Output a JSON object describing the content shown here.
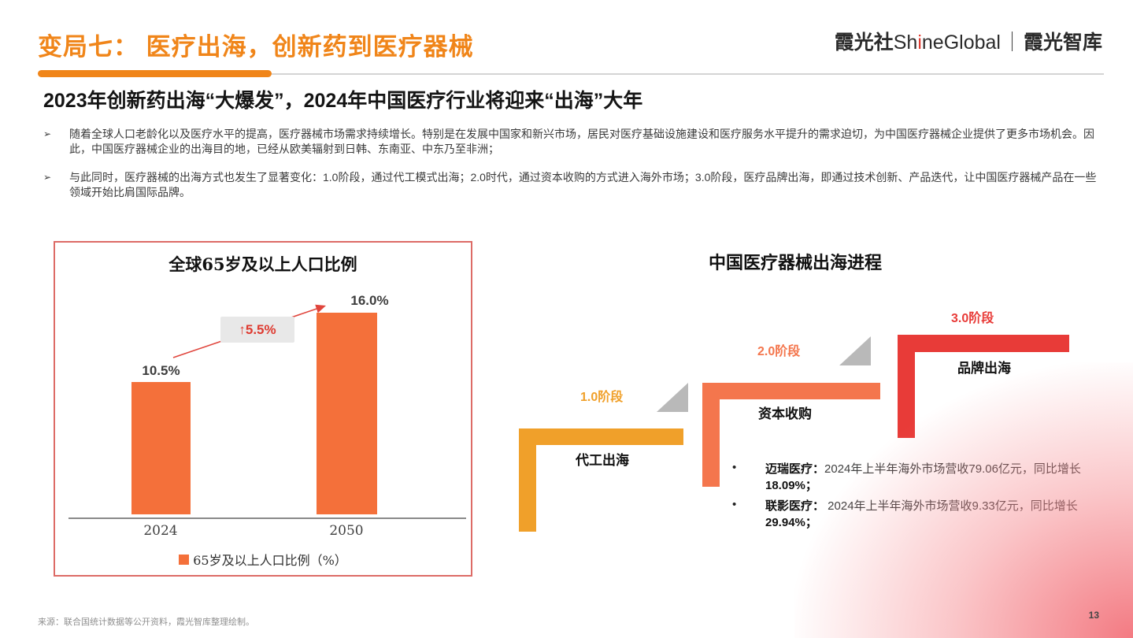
{
  "header": {
    "title_prefix": "变局七：",
    "title_rest": "医疗出海，创新药到医疗器械",
    "accent_color": "#F08519",
    "logo": {
      "zh1": "霞光社",
      "en_pre": "Sh",
      "en_accent": "i",
      "en_post": "neGlobal",
      "sep": "｜",
      "zh2": "霞光智库"
    }
  },
  "headline": "2023年创新药出海“大爆发”，2024年中国医疗行业将迎来“出海”大年",
  "bullets": {
    "marker": "➢",
    "items": [
      "随着全球人口老龄化以及医疗水平的提高，医疗器械市场需求持续增长。特别是在发展中国家和新兴市场，居民对医疗基础设施建设和医疗服务水平提升的需求迫切，为中国医疗器械企业提供了更多市场机会。因此，中国医疗器械企业的出海目的地，已经从欧美辐射到日韩、东南亚、中东乃至非洲；",
      "与此同时，医疗器械的出海方式也发生了显著变化：1.0阶段，通过代工模式出海；2.0时代，通过资本收购的方式进入海外市场；3.0阶段，医疗品牌出海，即通过技术创新、产品迭代，让中国医疗器械产品在一些领域开始比肩国际品牌。"
    ]
  },
  "chart_data": {
    "type": "bar",
    "title": "全球65岁及以上人口比例",
    "categories": [
      "2024",
      "2050"
    ],
    "values": [
      10.5,
      16.0
    ],
    "value_labels": [
      "10.5%",
      "16.0%"
    ],
    "annotation": "↑5.5%",
    "legend_label": "65岁及以上人口比例（%）",
    "bar_color": "#F4703A",
    "annotation_color": "#DE3B31",
    "border_color": "#DD6B66",
    "ylim": [
      0,
      18
    ],
    "grid": false,
    "legend_position": "bottom"
  },
  "diagram": {
    "title": "中国医疗器械出海进程",
    "steps": [
      {
        "stage": "1.0阶段",
        "name": "代工出海",
        "color": "#F0A02A"
      },
      {
        "stage": "2.0阶段",
        "name": "资本收购",
        "color": "#F4764D"
      },
      {
        "stage": "3.0阶段",
        "name": "品牌出海",
        "color": "#E83B38"
      }
    ],
    "companies": {
      "marker": "•",
      "items": [
        {
          "name": "迈瑞医疗：",
          "text": "2024年上半年海外市场营收79.06亿元，同比增长",
          "pct": "18.09%；"
        },
        {
          "name": "联影医疗：",
          "text": " 2024年上半年海外市场营收9.33亿元，同比增长",
          "pct": "29.94%；"
        }
      ]
    }
  },
  "footer": {
    "source": "来源：联合国统计数据等公开资料，霞光智库整理绘制。",
    "page": "13"
  }
}
